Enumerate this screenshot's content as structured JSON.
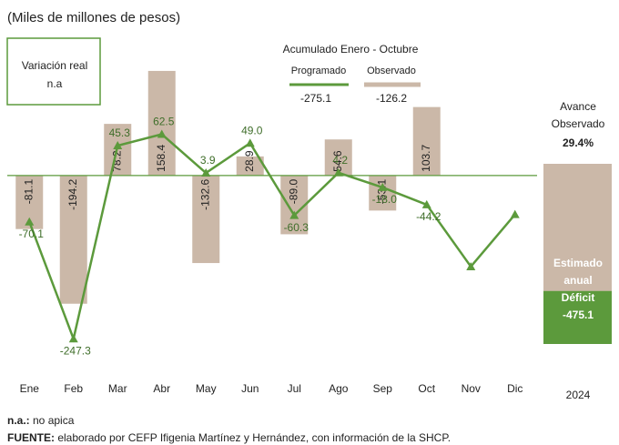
{
  "chart_data": {
    "type": "bar",
    "subtitle": "(Miles de millones de pesos)",
    "note_box": [
      "Variación real",
      "n.a"
    ],
    "accumulated_title": "Acumulado Enero - Octubre",
    "categories": [
      "Ene",
      "Feb",
      "Mar",
      "Abr",
      "May",
      "Jun",
      "Jul",
      "Ago",
      "Sep",
      "Oct",
      "Nov",
      "Dic"
    ],
    "series": [
      {
        "name": "Observado",
        "type": "bar",
        "color": "#cbb8a8",
        "values": [
          -81.1,
          -194.2,
          78.2,
          158.4,
          -132.6,
          28.9,
          -89.0,
          54.6,
          -53.1,
          103.7,
          null,
          null
        ],
        "value_labels": [
          "-81.1",
          "-194.2",
          "78.2",
          "158.4",
          "-132.6",
          "28.9",
          "-89.0",
          "54.6",
          "-53.1",
          "103.7",
          null,
          null
        ],
        "total": -126.2
      },
      {
        "name": "Programado",
        "type": "line",
        "color": "#5c9a3c",
        "values": [
          -70.1,
          -247.3,
          45.3,
          62.5,
          3.9,
          49.0,
          -60.3,
          4.2,
          -18.0,
          -44.2,
          -138,
          -59
        ],
        "value_labels": [
          "-70.1",
          "-247.3",
          "45.3",
          "62.5",
          "3.9",
          "49.0",
          "-60.3",
          "4.2",
          "-18.0",
          "-44.2",
          null,
          null
        ],
        "total": -275.1
      }
    ],
    "ylim": [
      -280,
      190
    ],
    "side": {
      "title": [
        "Avance",
        "Observado"
      ],
      "percent": 29.4,
      "percent_label": "29.4%",
      "estimate_text": [
        "Estimado",
        "anual",
        "Déficit"
      ],
      "estimate": -475.1,
      "year": "2024"
    },
    "footnotes": [
      [
        "n.a.:",
        " no apica"
      ],
      [
        "FUENTE:",
        " elaborado por CEFP Ifigenia Martínez y Hernández, con información de la SHCP."
      ]
    ]
  }
}
